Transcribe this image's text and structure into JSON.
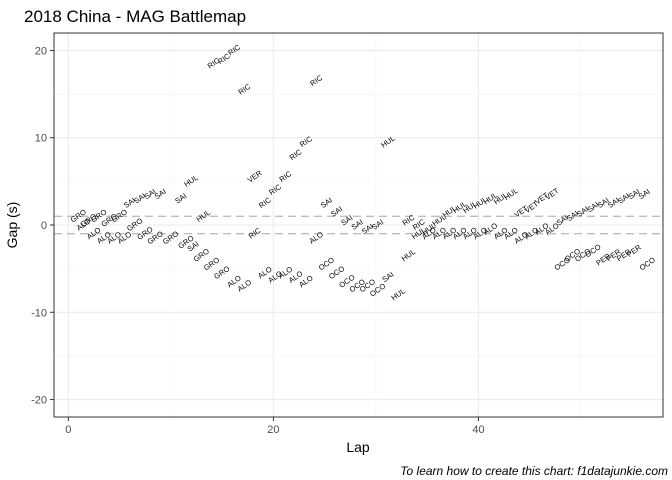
{
  "chart_data": {
    "type": "scatter",
    "title": "2018 China - MAG Battlemap",
    "xlabel": "Lap",
    "ylabel": "Gap (s)",
    "caption": "To learn how to create this chart: f1datajunkie.com",
    "xlim": [
      -1.4,
      58.0
    ],
    "ylim": [
      -22.0,
      22.0
    ],
    "x_ticks": [
      0,
      20,
      40
    ],
    "y_ticks": [
      -20,
      -10,
      0,
      10,
      20
    ],
    "grid": true,
    "reference_lines": [
      1,
      -1
    ],
    "points": [
      {
        "x": 1,
        "y": 1,
        "label": "GRO"
      },
      {
        "x": 2,
        "y": 0.5,
        "label": "GRO"
      },
      {
        "x": 3,
        "y": 1,
        "label": "GRO"
      },
      {
        "x": 1.5,
        "y": 0,
        "label": "ALO"
      },
      {
        "x": 2.5,
        "y": -1,
        "label": "ALO"
      },
      {
        "x": 3.5,
        "y": -1.5,
        "label": "ALO"
      },
      {
        "x": 4,
        "y": 0.5,
        "label": "GRO"
      },
      {
        "x": 4.5,
        "y": -1.5,
        "label": "ALO"
      },
      {
        "x": 5,
        "y": 1,
        "label": "GRO"
      },
      {
        "x": 5.5,
        "y": -1.5,
        "label": "ALO"
      },
      {
        "x": 6,
        "y": 2.5,
        "label": "SAI"
      },
      {
        "x": 6.5,
        "y": 0,
        "label": "GRO"
      },
      {
        "x": 7,
        "y": 3,
        "label": "SAI"
      },
      {
        "x": 7.5,
        "y": -1,
        "label": "GRO"
      },
      {
        "x": 8,
        "y": 3.5,
        "label": "SAI"
      },
      {
        "x": 8.5,
        "y": -1.5,
        "label": "GRO"
      },
      {
        "x": 9,
        "y": 3.5,
        "label": "SAI"
      },
      {
        "x": 10,
        "y": -1.5,
        "label": "GRO"
      },
      {
        "x": 11,
        "y": 3,
        "label": "SAI"
      },
      {
        "x": 11.5,
        "y": -2,
        "label": "GRO"
      },
      {
        "x": 12,
        "y": 5,
        "label": "HUL"
      },
      {
        "x": 12.2,
        "y": -2.5,
        "label": "SAI"
      },
      {
        "x": 13,
        "y": -3.5,
        "label": "GRO"
      },
      {
        "x": 13.2,
        "y": 1,
        "label": "HUL"
      },
      {
        "x": 14,
        "y": -4.5,
        "label": "GRO"
      },
      {
        "x": 15,
        "y": -5.5,
        "label": "GRO"
      },
      {
        "x": 14.2,
        "y": 18.5,
        "label": "RIC"
      },
      {
        "x": 15.2,
        "y": 19,
        "label": "RIC"
      },
      {
        "x": 16.2,
        "y": 20,
        "label": "RIC"
      },
      {
        "x": 16.2,
        "y": -6.5,
        "label": "ALO"
      },
      {
        "x": 17.2,
        "y": -7,
        "label": "ALO"
      },
      {
        "x": 17.2,
        "y": 15.5,
        "label": "RIC"
      },
      {
        "x": 18.2,
        "y": -1,
        "label": "RIC"
      },
      {
        "x": 18.2,
        "y": 5.5,
        "label": "VER"
      },
      {
        "x": 19.2,
        "y": -5.5,
        "label": "ALO"
      },
      {
        "x": 19.2,
        "y": 2.5,
        "label": "RIC"
      },
      {
        "x": 20.2,
        "y": -6,
        "label": "ALO"
      },
      {
        "x": 20.2,
        "y": 4,
        "label": "RIC"
      },
      {
        "x": 21.2,
        "y": -5.5,
        "label": "ALO"
      },
      {
        "x": 21.2,
        "y": 5.5,
        "label": "RIC"
      },
      {
        "x": 22.2,
        "y": -6,
        "label": "ALO"
      },
      {
        "x": 22.2,
        "y": 8,
        "label": "RIC"
      },
      {
        "x": 23.2,
        "y": -6.5,
        "label": "ALO"
      },
      {
        "x": 23.2,
        "y": 9.5,
        "label": "RIC"
      },
      {
        "x": 24.2,
        "y": 16.5,
        "label": "RIC"
      },
      {
        "x": 24.2,
        "y": -1.5,
        "label": "ALO"
      },
      {
        "x": 25.2,
        "y": 2.5,
        "label": "SAI"
      },
      {
        "x": 25.2,
        "y": -4.5,
        "label": "OCO"
      },
      {
        "x": 26.2,
        "y": 1.5,
        "label": "SAI"
      },
      {
        "x": 26.2,
        "y": -5.5,
        "label": "OCO"
      },
      {
        "x": 27.2,
        "y": 0.5,
        "label": "SAI"
      },
      {
        "x": 27.2,
        "y": -6.5,
        "label": "OCO"
      },
      {
        "x": 28.2,
        "y": 0,
        "label": "SAI"
      },
      {
        "x": 28.2,
        "y": -7,
        "label": "OCO"
      },
      {
        "x": 29.2,
        "y": -0.5,
        "label": "SAI"
      },
      {
        "x": 29.2,
        "y": -7,
        "label": "OCO"
      },
      {
        "x": 30.2,
        "y": 0,
        "label": "SAI"
      },
      {
        "x": 30.2,
        "y": -7.5,
        "label": "OCO"
      },
      {
        "x": 31.2,
        "y": 9.5,
        "label": "HUL"
      },
      {
        "x": 31.2,
        "y": -6,
        "label": "SAI"
      },
      {
        "x": 32.2,
        "y": -8,
        "label": "HUL"
      },
      {
        "x": 33.2,
        "y": 0.5,
        "label": "RIC"
      },
      {
        "x": 33.2,
        "y": -3.5,
        "label": "HUL"
      },
      {
        "x": 34.2,
        "y": 0,
        "label": "RIC"
      },
      {
        "x": 34.2,
        "y": -1,
        "label": "HUL"
      },
      {
        "x": 35.2,
        "y": -0.5,
        "label": "HUL"
      },
      {
        "x": 35.2,
        "y": -1,
        "label": "ALO"
      },
      {
        "x": 36.2,
        "y": 0.5,
        "label": "HUL"
      },
      {
        "x": 36.2,
        "y": -1,
        "label": "ALO"
      },
      {
        "x": 37.2,
        "y": 1.5,
        "label": "HUL"
      },
      {
        "x": 37.2,
        "y": -1,
        "label": "ALO"
      },
      {
        "x": 38.2,
        "y": 2,
        "label": "HUL"
      },
      {
        "x": 38.2,
        "y": -1,
        "label": "ALO"
      },
      {
        "x": 39.2,
        "y": 2,
        "label": "HUL"
      },
      {
        "x": 39.2,
        "y": -1,
        "label": "ALO"
      },
      {
        "x": 40.2,
        "y": 2.5,
        "label": "HUL"
      },
      {
        "x": 40.2,
        "y": -1,
        "label": "ALO"
      },
      {
        "x": 41.2,
        "y": 3,
        "label": "HUL"
      },
      {
        "x": 41.2,
        "y": -0.5,
        "label": "ALO"
      },
      {
        "x": 42.2,
        "y": 3,
        "label": "HUL"
      },
      {
        "x": 42.2,
        "y": -1,
        "label": "ALO"
      },
      {
        "x": 43.2,
        "y": 3.5,
        "label": "HUL"
      },
      {
        "x": 43.2,
        "y": -1,
        "label": "ALO"
      },
      {
        "x": 44.2,
        "y": 1.5,
        "label": "VET"
      },
      {
        "x": 44.2,
        "y": -1.5,
        "label": "ALO"
      },
      {
        "x": 45.2,
        "y": 2,
        "label": "VET"
      },
      {
        "x": 45.2,
        "y": -1,
        "label": "ALO"
      },
      {
        "x": 46.2,
        "y": 3,
        "label": "VET"
      },
      {
        "x": 46.2,
        "y": -0.5,
        "label": "ALO"
      },
      {
        "x": 47.2,
        "y": 3.5,
        "label": "VET"
      },
      {
        "x": 47.2,
        "y": -0.5,
        "label": "ALO"
      },
      {
        "x": 48.2,
        "y": 0.5,
        "label": "SAI"
      },
      {
        "x": 48.2,
        "y": -4.5,
        "label": "OCO"
      },
      {
        "x": 49.2,
        "y": 1,
        "label": "SAI"
      },
      {
        "x": 49.2,
        "y": -3.5,
        "label": "OCO"
      },
      {
        "x": 50.2,
        "y": 1.5,
        "label": "SAI"
      },
      {
        "x": 50.2,
        "y": -3.5,
        "label": "OCO"
      },
      {
        "x": 51.2,
        "y": 2,
        "label": "SAI"
      },
      {
        "x": 51.2,
        "y": -3,
        "label": "OCO"
      },
      {
        "x": 52.2,
        "y": 2.5,
        "label": "SAI"
      },
      {
        "x": 52.2,
        "y": -4,
        "label": "PER"
      },
      {
        "x": 53.2,
        "y": 2.5,
        "label": "SAI"
      },
      {
        "x": 53.2,
        "y": -3.5,
        "label": "PER"
      },
      {
        "x": 54.2,
        "y": 3,
        "label": "SAI"
      },
      {
        "x": 54.2,
        "y": -3.5,
        "label": "PER"
      },
      {
        "x": 55.2,
        "y": 3.5,
        "label": "SAI"
      },
      {
        "x": 55.2,
        "y": -3,
        "label": "PER"
      },
      {
        "x": 56.2,
        "y": 3.5,
        "label": "SAI"
      },
      {
        "x": 56.5,
        "y": -4.5,
        "label": "OCO"
      }
    ]
  }
}
